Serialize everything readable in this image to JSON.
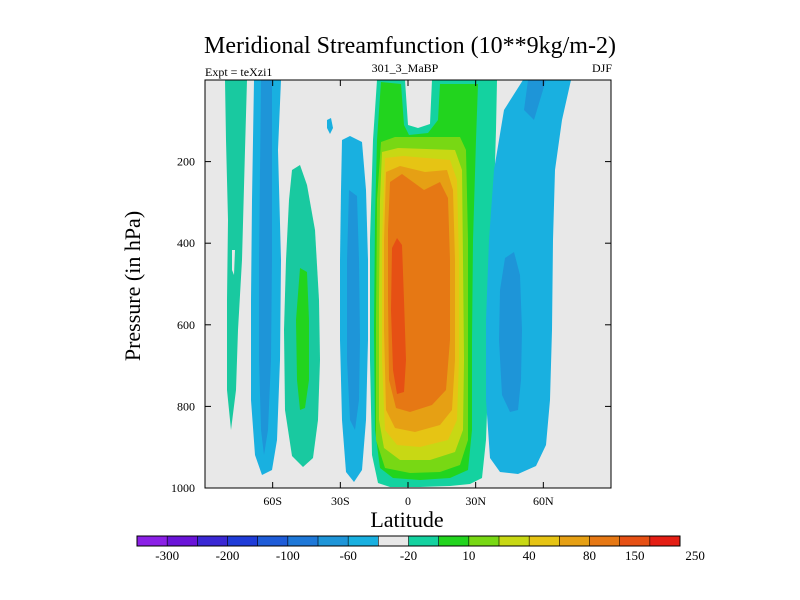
{
  "chart_data": {
    "type": "contour",
    "title": "Meridional Streamfunction (10**9kg/m-2)",
    "left_label": "Expt = teXzi1",
    "center_label": "301_3_MaBP",
    "right_label": "DJF",
    "xlabel": "Latitude",
    "ylabel": "Pressure (in hPa)",
    "xlim": [
      -90,
      90
    ],
    "ylim": [
      1000,
      0
    ],
    "x_ticks": [
      {
        "value": -60,
        "label": "60S"
      },
      {
        "value": -30,
        "label": "30S"
      },
      {
        "value": 0,
        "label": "0"
      },
      {
        "value": 30,
        "label": "30N"
      },
      {
        "value": 60,
        "label": "60N"
      }
    ],
    "y_ticks": [
      {
        "value": 200,
        "label": "200"
      },
      {
        "value": 400,
        "label": "400"
      },
      {
        "value": 600,
        "label": "600"
      },
      {
        "value": 800,
        "label": "800"
      },
      {
        "value": 1000,
        "label": "1000"
      }
    ],
    "colorbar": {
      "colors": [
        "#8b20e6",
        "#6a14d8",
        "#3a28d4",
        "#1f3cd8",
        "#1e5cd8",
        "#1e78d8",
        "#1e95d8",
        "#19b0e0",
        "#e8e8e8",
        "#14d2a0",
        "#22d41e",
        "#78d814",
        "#c8d814",
        "#e6c414",
        "#e6a014",
        "#e67814",
        "#e65014",
        "#e41e14"
      ],
      "labels": [
        "-300",
        "-200",
        "-100",
        "-60",
        "-20",
        "10",
        "40",
        "80",
        "150",
        "250"
      ]
    },
    "cells": [
      {
        "name": "far-south-green-strip",
        "value": 10,
        "center_lat": -77,
        "center_p": 400
      },
      {
        "name": "south-polar-blue-cell",
        "value": -40,
        "center_lat": -62,
        "center_p": 500
      },
      {
        "name": "southern-green-cell",
        "value": 25,
        "center_lat": -46,
        "center_p": 620
      },
      {
        "name": "southern-blue-cell",
        "value": -40,
        "center_lat": -28,
        "center_p": 580
      },
      {
        "name": "tropical-hadley-cell",
        "value": 230,
        "center_lat": -3,
        "center_p": 580
      },
      {
        "name": "northern-blue-cell",
        "value": -50,
        "center_lat": 48,
        "center_p": 550
      }
    ]
  }
}
